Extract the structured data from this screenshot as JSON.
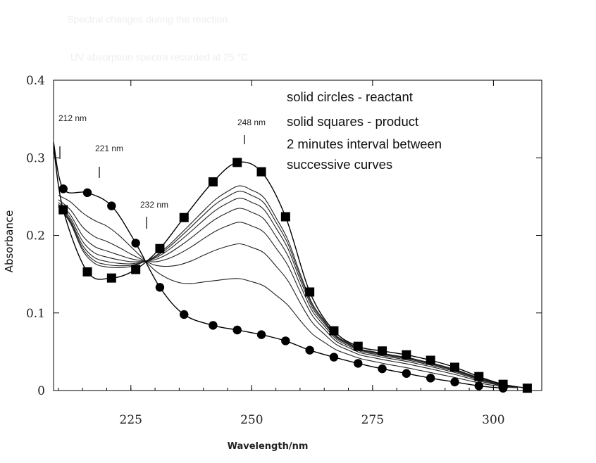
{
  "chart_data": {
    "type": "line",
    "title": "",
    "xlabel": "Wavelength/nm",
    "ylabel": "Absorbance",
    "xlim": [
      209,
      310
    ],
    "ylim": [
      0,
      0.4
    ],
    "xticks": [
      225,
      250,
      275,
      300
    ],
    "xtick_labels": [
      "225",
      "250",
      "275",
      "300"
    ],
    "yticks": [
      0,
      0.1,
      0.2,
      0.3,
      0.4
    ],
    "ytick_labels": [
      "0",
      "0.1",
      "0.2",
      "0.3",
      "0.4"
    ],
    "legend_lines": [
      "solid circles - reactant",
      "solid squares - product",
      "2 minutes interval between",
      "successive curves"
    ],
    "annotations": [
      {
        "text": "212 nm",
        "x": 211,
        "y": 0.315
      },
      {
        "text": "221 nm",
        "x": 218,
        "y": 0.275
      },
      {
        "text": "232 nm",
        "x": 228.5,
        "y": 0.2
      },
      {
        "text": "248 nm",
        "x": 248,
        "y": 0.315
      }
    ],
    "faded_header": [
      "Spectral changes during the reaction",
      "UV absorption spectra recorded at 25 °C"
    ],
    "reactant": {
      "name": "reactant",
      "marker": "circle",
      "x": [
        211,
        216,
        221,
        226,
        231,
        236,
        242,
        247,
        252,
        257,
        262,
        267,
        272,
        277,
        282,
        287,
        292,
        297,
        302
      ],
      "y": [
        0.26,
        0.255,
        0.238,
        0.19,
        0.133,
        0.098,
        0.084,
        0.078,
        0.072,
        0.064,
        0.052,
        0.043,
        0.035,
        0.028,
        0.022,
        0.016,
        0.011,
        0.006,
        0.003
      ]
    },
    "product": {
      "name": "product",
      "marker": "square",
      "x": [
        211,
        216,
        221,
        226,
        231,
        236,
        242,
        247,
        252,
        257,
        262,
        267,
        272,
        277,
        282,
        287,
        292,
        297,
        302,
        307
      ],
      "y": [
        0.233,
        0.153,
        0.145,
        0.156,
        0.183,
        0.223,
        0.269,
        0.294,
        0.282,
        0.224,
        0.127,
        0.077,
        0.057,
        0.051,
        0.046,
        0.039,
        0.03,
        0.018,
        0.008,
        0.003
      ]
    },
    "intermediate_peaks": [
      0.145,
      0.19,
      0.218,
      0.236,
      0.249,
      0.258,
      0.265
    ],
    "isosbestic_point": {
      "x": 228.5,
      "y": 0.165
    }
  }
}
